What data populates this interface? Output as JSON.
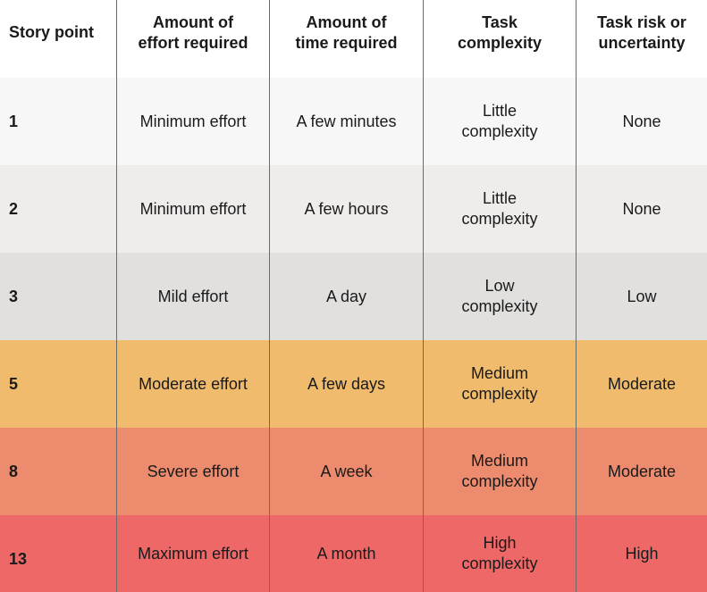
{
  "columns": [
    "Story point",
    "Amount of effort required",
    "Amount of time required",
    "Task complexity",
    "Task risk or uncertainty"
  ],
  "column_lines": [
    [
      "Story point"
    ],
    [
      "Amount of",
      "effort required"
    ],
    [
      "Amount of",
      "time required"
    ],
    [
      "Task",
      "complexity"
    ],
    [
      "Task risk or",
      "uncertainty"
    ]
  ],
  "rows": [
    {
      "point": "1",
      "effort": "Minimum effort",
      "time": "A few minutes",
      "complexity": [
        "Little",
        "complexity"
      ],
      "risk": "None",
      "bg": "#f7f7f7"
    },
    {
      "point": "2",
      "effort": "Minimum effort",
      "time": "A few hours",
      "complexity": [
        "Little",
        "complexity"
      ],
      "risk": "None",
      "bg": "#efedeb"
    },
    {
      "point": "3",
      "effort": "Mild effort",
      "time": "A day",
      "complexity": [
        "Low",
        "complexity"
      ],
      "risk": "Low",
      "bg": "#e1e0df"
    },
    {
      "point": "5",
      "effort": "Moderate effort",
      "time": "A few days",
      "complexity": [
        "Medium",
        "complexity"
      ],
      "risk": "Moderate",
      "bg": "#f0bb6c"
    },
    {
      "point": "8",
      "effort": "Severe effort",
      "time": "A week",
      "complexity": [
        "Medium",
        "complexity"
      ],
      "risk": "Moderate",
      "bg": "#ec8b6d"
    },
    {
      "point": "13",
      "effort": "Maximum effort",
      "time": "A month",
      "complexity": [
        "High",
        "complexity"
      ],
      "risk": "High",
      "bg": "#ef6868"
    }
  ]
}
